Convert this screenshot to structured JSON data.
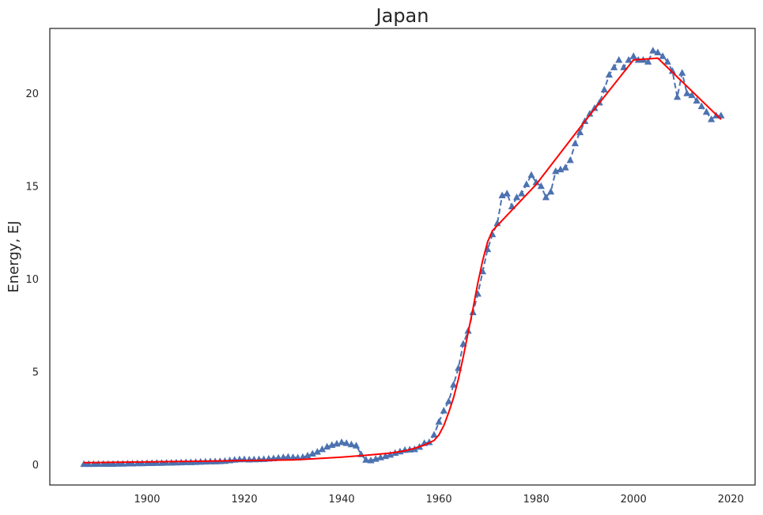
{
  "chart_data": {
    "type": "line",
    "title": "Japan",
    "xlabel": "",
    "ylabel": "Energy, EJ",
    "xlim": [
      1880,
      2025
    ],
    "ylim": [
      -1.1,
      23.5
    ],
    "xticks": [
      1900,
      1920,
      1940,
      1960,
      1980,
      2000,
      2020
    ],
    "yticks": [
      0,
      5,
      10,
      15,
      20
    ],
    "grid": false,
    "colors": {
      "series": "#4c72b0",
      "fit": "#ff0000",
      "frame": "#262626"
    },
    "series": [
      {
        "style": "dashed-triangle",
        "x": [
          1887,
          1888,
          1889,
          1890,
          1891,
          1892,
          1893,
          1894,
          1895,
          1896,
          1897,
          1898,
          1899,
          1900,
          1901,
          1902,
          1903,
          1904,
          1905,
          1906,
          1907,
          1908,
          1909,
          1910,
          1911,
          1912,
          1913,
          1914,
          1915,
          1916,
          1917,
          1918,
          1919,
          1920,
          1921,
          1922,
          1923,
          1924,
          1925,
          1926,
          1927,
          1928,
          1929,
          1930,
          1931,
          1932,
          1933,
          1934,
          1935,
          1936,
          1937,
          1938,
          1939,
          1940,
          1941,
          1942,
          1943,
          1944,
          1945,
          1946,
          1947,
          1948,
          1949,
          1950,
          1951,
          1952,
          1953,
          1954,
          1955,
          1956,
          1957,
          1958,
          1959,
          1960,
          1961,
          1962,
          1963,
          1964,
          1965,
          1966,
          1967,
          1968,
          1969,
          1970,
          1971,
          1972,
          1973,
          1974,
          1975,
          1976,
          1977,
          1978,
          1979,
          1980,
          1981,
          1982,
          1983,
          1984,
          1985,
          1986,
          1987,
          1988,
          1989,
          1990,
          1991,
          1992,
          1993,
          1994,
          1995,
          1996,
          1997,
          1998,
          1999,
          2000,
          2001,
          2002,
          2003,
          2004,
          2005,
          2006,
          2007,
          2008,
          2009,
          2010,
          2011,
          2012,
          2013,
          2014,
          2015,
          2016,
          2017,
          2018
        ],
        "y": [
          0.02,
          0.02,
          0.02,
          0.03,
          0.03,
          0.03,
          0.03,
          0.04,
          0.04,
          0.05,
          0.05,
          0.06,
          0.06,
          0.07,
          0.07,
          0.08,
          0.08,
          0.09,
          0.09,
          0.1,
          0.11,
          0.12,
          0.12,
          0.13,
          0.14,
          0.15,
          0.16,
          0.16,
          0.17,
          0.19,
          0.22,
          0.25,
          0.27,
          0.28,
          0.26,
          0.27,
          0.28,
          0.29,
          0.31,
          0.33,
          0.36,
          0.39,
          0.41,
          0.39,
          0.37,
          0.4,
          0.48,
          0.58,
          0.68,
          0.82,
          0.96,
          1.05,
          1.12,
          1.2,
          1.15,
          1.08,
          1.02,
          0.55,
          0.25,
          0.22,
          0.3,
          0.38,
          0.45,
          0.52,
          0.62,
          0.7,
          0.78,
          0.8,
          0.82,
          0.95,
          1.15,
          1.2,
          1.6,
          2.3,
          2.9,
          3.4,
          4.3,
          5.2,
          6.5,
          7.2,
          8.2,
          9.2,
          10.4,
          11.6,
          12.4,
          13.0,
          14.5,
          14.6,
          13.9,
          14.4,
          14.6,
          15.1,
          15.6,
          15.2,
          15.0,
          14.4,
          14.7,
          15.8,
          15.9,
          16.0,
          16.4,
          17.3,
          17.9,
          18.5,
          18.9,
          19.2,
          19.5,
          20.2,
          21.0,
          21.4,
          21.8,
          21.4,
          21.8,
          22.0,
          21.8,
          21.8,
          21.7,
          22.3,
          22.2,
          22.0,
          21.7,
          21.2,
          19.8,
          21.1,
          20.0,
          19.9,
          19.6,
          19.3,
          19.0,
          18.6,
          18.8,
          18.8
        ]
      },
      {
        "style": "solid",
        "x": [
          1887,
          1930,
          1940,
          1945,
          1950,
          1953,
          1955,
          1957,
          1959,
          1960,
          1961,
          1962,
          1963,
          1964,
          1965,
          1966,
          1967,
          1968,
          1969,
          1970,
          1971,
          1980,
          1990,
          2000,
          2005,
          2018
        ],
        "y": [
          0.1,
          0.25,
          0.4,
          0.5,
          0.62,
          0.74,
          0.88,
          1.05,
          1.3,
          1.6,
          2.1,
          2.8,
          3.6,
          4.6,
          5.8,
          7.1,
          8.4,
          9.8,
          11.0,
          12.0,
          12.6,
          15.1,
          18.5,
          21.8,
          21.9,
          18.6
        ]
      }
    ]
  }
}
